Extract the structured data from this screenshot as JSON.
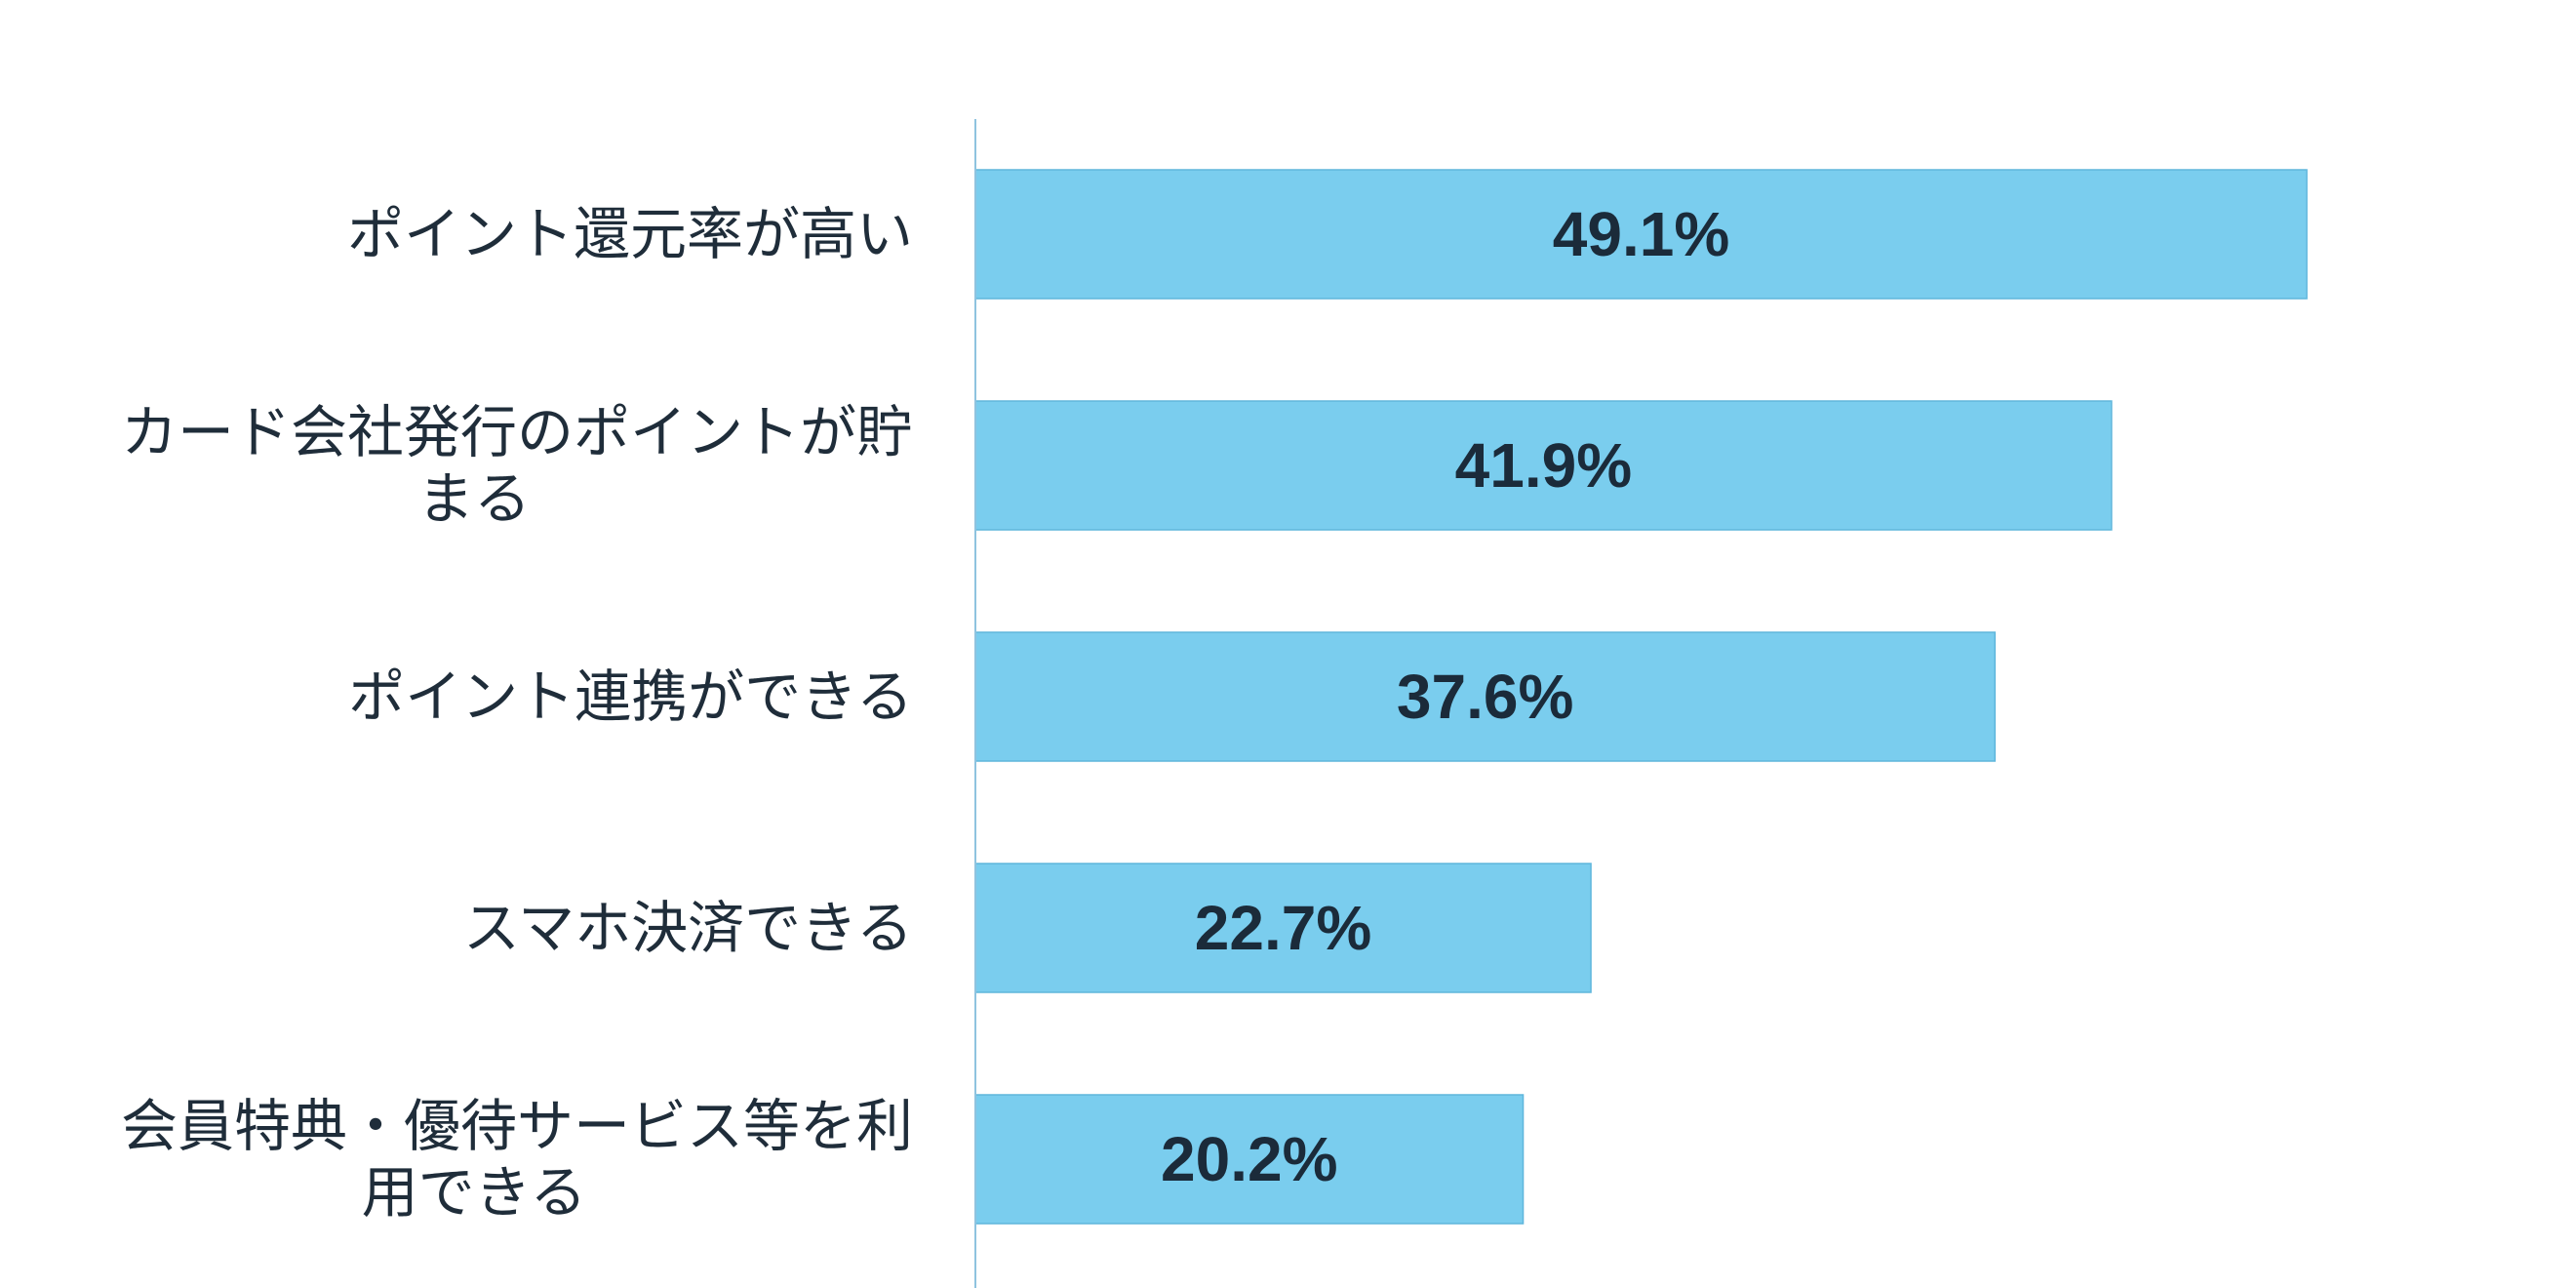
{
  "chart_data": {
    "type": "bar",
    "orientation": "horizontal",
    "categories": [
      "ポイント還元率が高い",
      "カード会社発行のポイントが貯まる",
      "ポイント連携ができる",
      "スマホ決済できる",
      "会員特典・優待サービス等を利用できる"
    ],
    "category_lines": [
      [
        "ポイント還元率が高い"
      ],
      [
        "カード会社発行のポイントが貯",
        "まる"
      ],
      [
        "ポイント連携ができる"
      ],
      [
        "スマホ決済できる"
      ],
      [
        "会員特典・優待サービス等を利",
        "用できる"
      ]
    ],
    "values": [
      49.1,
      41.9,
      37.6,
      22.7,
      20.2
    ],
    "data_labels": [
      "49.1%",
      "41.9%",
      "37.6%",
      "22.7%",
      "20.2%"
    ],
    "unit": "%",
    "xlim": [
      0,
      60
    ],
    "grid": false,
    "legend": "none",
    "title": "",
    "xlabel": "",
    "ylabel": "",
    "colors": {
      "bar": "#7acdee",
      "bar_border": "#5fb6dc",
      "axis": "#8fc3df",
      "label_text": "#1f2d3a",
      "value_text": "#1b2b3a"
    }
  }
}
